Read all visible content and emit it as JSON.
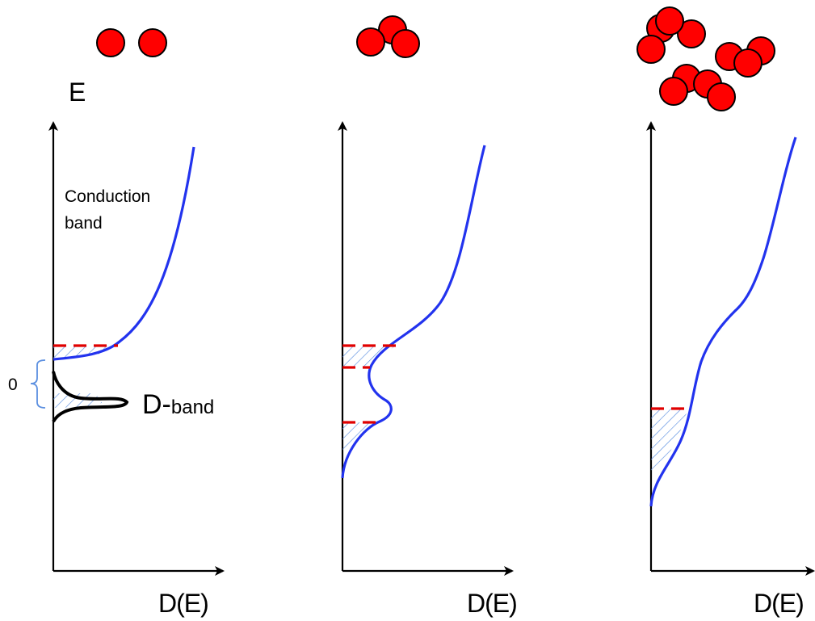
{
  "labels": {
    "energy_axis": "E",
    "x_axis": "D(E)",
    "conduction_band_line1": "Conduction",
    "conduction_band_line2": "band",
    "zero_level": "0",
    "dband_main": "D-",
    "dband_sub": "band"
  },
  "panels": [
    {
      "id": "isolated-dopants",
      "cluster_atom_count": 2,
      "dos_curve_color": "#2233ee"
    },
    {
      "id": "dopant-trimer",
      "cluster_atom_count": 3,
      "dos_curve_color": "#2233ee"
    },
    {
      "id": "dopant-clusters",
      "cluster_atom_count": 11,
      "dos_curve_color": "#2233ee"
    }
  ],
  "colors": {
    "atom_fill": "#ff0000",
    "atom_outline": "#000000",
    "dos_curve": "#2233ee",
    "dband_curve": "#000000",
    "fermi_dash": "#e00000",
    "hatch": "#5b8fe0",
    "bracket": "#5b8fe0",
    "axis": "#000000"
  }
}
